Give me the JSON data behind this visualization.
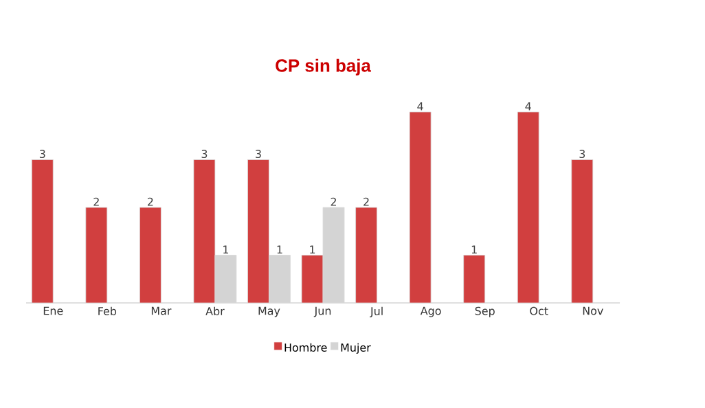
{
  "chart_data": {
    "type": "bar",
    "title": "CP sin baja",
    "categories": [
      "Ene",
      "Feb",
      "Mar",
      "Abr",
      "May",
      "Jun",
      "Jul",
      "Ago",
      "Sep",
      "Oct",
      "Nov"
    ],
    "series": [
      {
        "name": "Hombre",
        "color": "#d13f3f",
        "values": [
          3,
          2,
          2,
          3,
          3,
          1,
          2,
          4,
          1,
          4,
          3
        ]
      },
      {
        "name": "Mujer",
        "color": "#d4d4d4",
        "values": [
          null,
          null,
          null,
          1,
          1,
          2,
          null,
          null,
          null,
          null,
          null
        ]
      }
    ],
    "data_labels": true,
    "legend": "bottom"
  }
}
